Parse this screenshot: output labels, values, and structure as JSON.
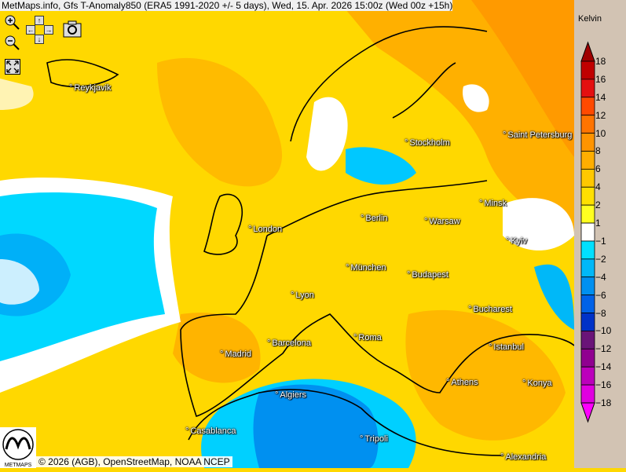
{
  "title": "MetMaps.info, Gfs T-Anomaly850 (ERA5 1991-2020 +/- 5 days), Wed, 15. Apr. 2026 15:00z (Wed 00z +15h)",
  "controls": {
    "zoom_in": "zoom-in-icon",
    "zoom_out": "zoom-out-icon",
    "pan_up": "↑",
    "pan_down": "↓",
    "pan_left": "←",
    "pan_right": "→",
    "screenshot": "camera-icon",
    "fullscreen": "fullscreen-icon"
  },
  "cities": [
    "Reykjavik",
    "Stockholm",
    "Saint Petersburg",
    "Minsk",
    "Berlin",
    "Warsaw",
    "London",
    "Kyiv",
    "München",
    "Budapest",
    "Lyon",
    "Bucharest",
    "Barcelona",
    "Roma",
    "Madrid",
    "Istanbul",
    "Athens",
    "Konya",
    "Algiers",
    "Casablanca",
    "Tripoli",
    "Alexandria"
  ],
  "legend": {
    "unit": "Kelvin",
    "labels": [
      "18",
      "16",
      "14",
      "12",
      "10",
      "8",
      "6",
      "4",
      "2",
      "1",
      "−1",
      "−2",
      "−4",
      "−6",
      "−8",
      "−10",
      "−12",
      "−14",
      "−16",
      "−18"
    ],
    "colors": [
      "#c00000",
      "#e41010",
      "#ff4a00",
      "#ff7400",
      "#ff9400",
      "#ffae00",
      "#ffc800",
      "#ffe000",
      "#ffff20",
      "#ffffff",
      "#00e0ff",
      "#00b8f8",
      "#0090f0",
      "#0062e8",
      "#0032c8",
      "#6a1478",
      "#900090",
      "#bc00bc",
      "#e000e0"
    ],
    "arrow_top_color": "#a00000",
    "arrow_bottom_color": "#ff00ff"
  },
  "attribution": "© 2026 (AGB), OpenStreetMap, NOAA NCEP",
  "logo_text": "METMAPS"
}
